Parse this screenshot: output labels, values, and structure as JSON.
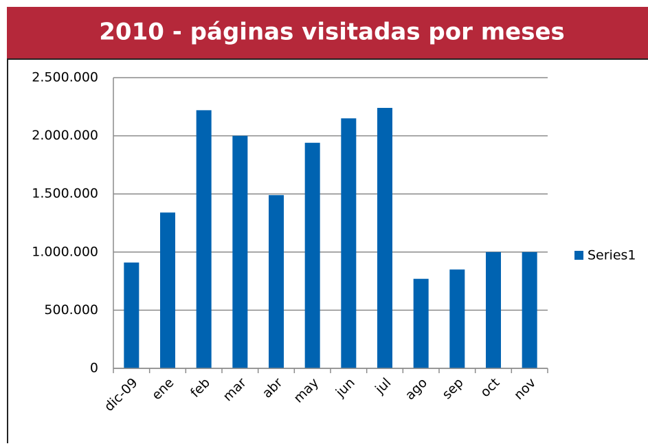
{
  "chart_data": {
    "type": "bar",
    "title": "2010 - páginas visitadas por meses",
    "categories": [
      "dic-09",
      "ene",
      "feb",
      "mar",
      "abr",
      "may",
      "jun",
      "jul",
      "ago",
      "sep",
      "oct",
      "nov"
    ],
    "series": [
      {
        "name": "Series1",
        "color": "#0063b1",
        "values": [
          910000,
          1340000,
          2220000,
          2000000,
          1490000,
          1940000,
          2150000,
          2240000,
          770000,
          850000,
          1000000,
          1000000
        ]
      }
    ],
    "ylim": [
      0,
      2500000
    ],
    "yticks": [
      0,
      {
        "value": 500000,
        "label": "500.000"
      },
      {
        "value": 1000000,
        "label": "1.000.000"
      },
      {
        "value": 1500000,
        "label": "1.500.000"
      },
      {
        "value": 2000000,
        "label": "2.000.000"
      },
      {
        "value": 2500000,
        "label": "2.500.000"
      }
    ],
    "grid": true,
    "legend": "right"
  }
}
